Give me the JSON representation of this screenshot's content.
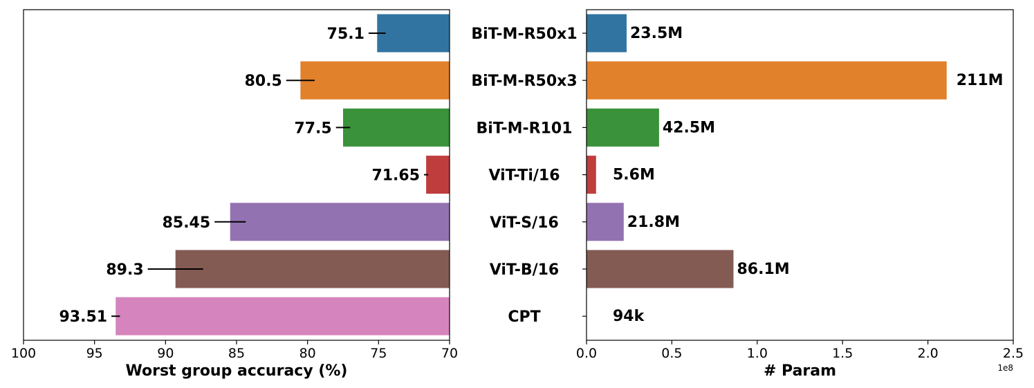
{
  "chart_data": [
    {
      "type": "bar",
      "orientation": "horizontal",
      "xlabel": "Worst group accuracy (%)",
      "xlim": [
        100,
        70
      ],
      "xticks": [
        "100",
        "95",
        "90",
        "85",
        "80",
        "75",
        "70"
      ],
      "xtick_values": [
        100,
        95,
        90,
        85,
        80,
        75,
        70
      ],
      "categories": [
        "BiT-M-R50x1",
        "BiT-M-R50x3",
        "BiT-M-R101",
        "ViT-Ti/16",
        "ViT-S/16",
        "ViT-B/16",
        "CPT"
      ],
      "values": [
        75.1,
        80.5,
        77.5,
        71.65,
        85.45,
        89.3,
        93.51
      ],
      "value_labels": [
        "75.1",
        "80.5",
        "77.5",
        "71.65",
        "85.45",
        "89.3",
        "93.51"
      ],
      "error": [
        0.6,
        1.0,
        0.5,
        0.15,
        1.1,
        1.95,
        0.3
      ]
    },
    {
      "type": "bar",
      "orientation": "horizontal",
      "xlabel": "# Param",
      "xlim": [
        0,
        2.5
      ],
      "xticks": [
        "0.0",
        "0.5",
        "1.0",
        "1.5",
        "2.0",
        "2.5"
      ],
      "xtick_values": [
        0,
        0.5,
        1.0,
        1.5,
        2.0,
        2.5
      ],
      "offset_label": "1e8",
      "categories": [
        "BiT-M-R50x1",
        "BiT-M-R50x3",
        "BiT-M-R101",
        "ViT-Ti/16",
        "ViT-S/16",
        "ViT-B/16",
        "CPT"
      ],
      "values": [
        0.235,
        2.11,
        0.425,
        0.056,
        0.218,
        0.861,
        0.00094
      ],
      "value_labels": [
        "23.5M",
        "211M",
        "42.5M",
        "5.6M",
        "21.8M",
        "86.1M",
        "94k"
      ]
    }
  ],
  "colors": [
    "#3274a1",
    "#e1812c",
    "#3a923a",
    "#c03d3e",
    "#9372b2",
    "#845b53",
    "#d684bd"
  ]
}
